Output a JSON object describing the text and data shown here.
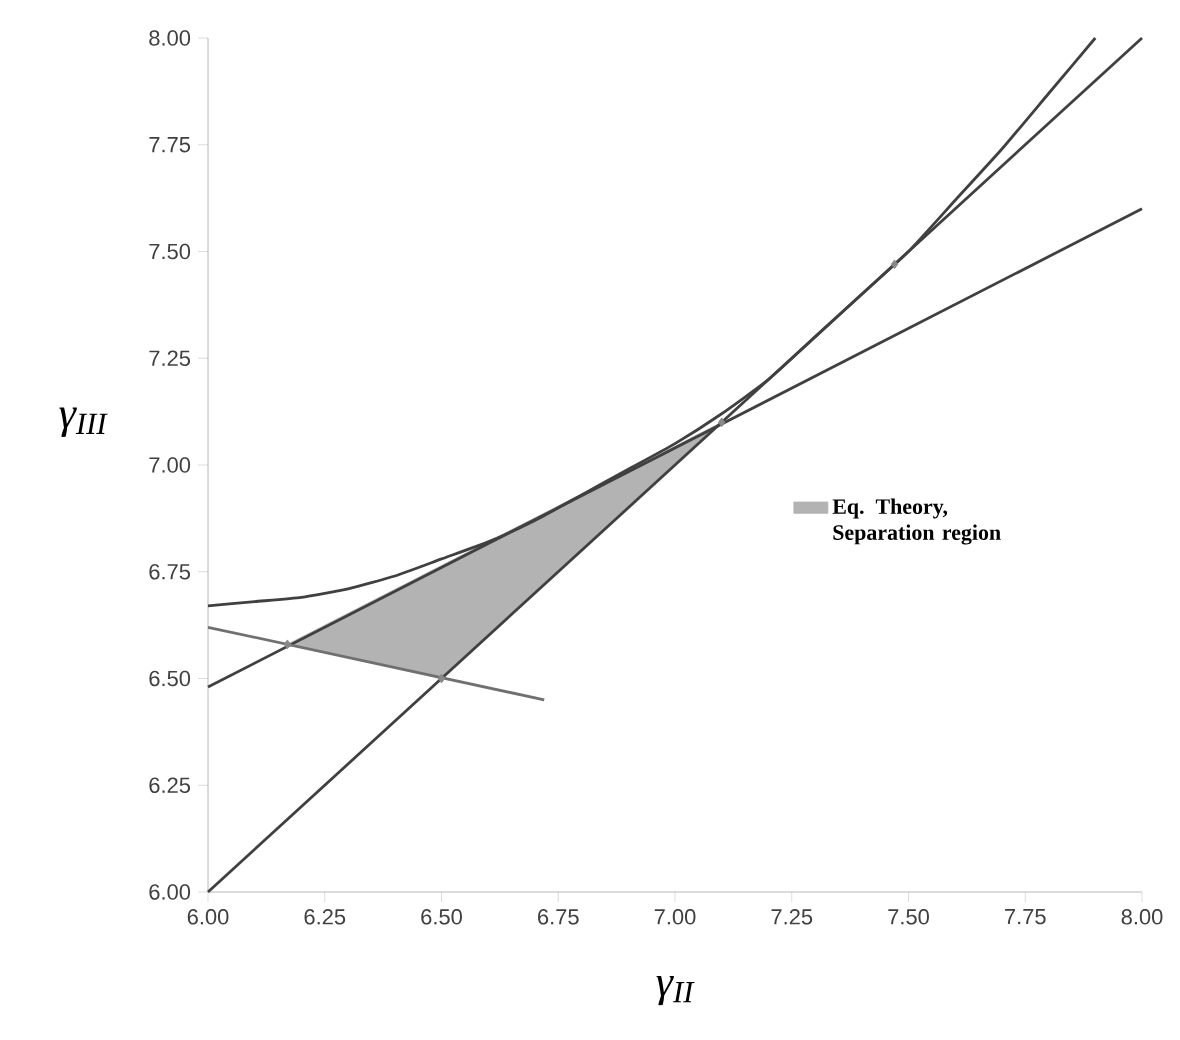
{
  "chart_data": {
    "type": "line",
    "xlabel": "γ$_{II}$",
    "ylabel": "γ$_{III}$",
    "xlim": [
      6,
      8
    ],
    "ylim": [
      6,
      8
    ],
    "xticks": [
      {
        "value": 6,
        "label": "6.00"
      },
      {
        "value": 6.25,
        "label": "6.25"
      },
      {
        "value": 6.5,
        "label": "6.50"
      },
      {
        "value": 6.75,
        "label": "6.75"
      },
      {
        "value": 7,
        "label": "7.00"
      },
      {
        "value": 7.25,
        "label": "7.25"
      },
      {
        "value": 7.5,
        "label": "7.50"
      },
      {
        "value": 7.75,
        "label": "7.75"
      },
      {
        "value": 8,
        "label": "8.00"
      }
    ],
    "yticks": [
      {
        "value": 6,
        "label": "6.00"
      },
      {
        "value": 6.25,
        "label": "6.25"
      },
      {
        "value": 6.5,
        "label": "6.50"
      },
      {
        "value": 6.75,
        "label": "6.75"
      },
      {
        "value": 7,
        "label": "7.00"
      },
      {
        "value": 7.25,
        "label": "7.25"
      },
      {
        "value": 7.5,
        "label": "7.50"
      },
      {
        "value": 7.75,
        "label": "7.75"
      },
      {
        "value": 8,
        "label": "8.00"
      }
    ],
    "grid": false,
    "legend": "right",
    "series": [
      {
        "type": "area",
        "name": "Eq. Theory, Separation region",
        "color": "#b3b3b3",
        "x": [
          6.17,
          7.1,
          6.5
        ],
        "values": [
          6.58,
          7.1,
          6.5
        ]
      },
      {
        "color": "#404040",
        "x": [
          6,
          8
        ],
        "values": [
          6,
          8
        ]
      },
      {
        "color": "#404040",
        "x": [
          6,
          8
        ],
        "values": [
          6.48,
          7.6
        ]
      },
      {
        "color": "#404040",
        "x": [
          6.0,
          6.1,
          6.2,
          6.3,
          6.4,
          6.5,
          6.6,
          6.7,
          6.8,
          6.9,
          7.0,
          7.1,
          7.2,
          7.3,
          7.4,
          7.5,
          7.6,
          7.7,
          7.8,
          7.9
        ],
        "values": [
          6.67,
          6.68,
          6.69,
          6.71,
          6.74,
          6.78,
          6.82,
          6.87,
          6.93,
          6.99,
          7.05,
          7.12,
          7.2,
          7.3,
          7.4,
          7.5,
          7.62,
          7.74,
          7.87,
          8.0
        ]
      },
      {
        "color": "#707070",
        "x": [
          6,
          6.72
        ],
        "values": [
          6.62,
          6.45
        ]
      },
      {
        "type": "scatter",
        "marker": "diamond",
        "color": "#888888",
        "x": [
          6.17,
          6.5,
          7.1,
          7.47
        ],
        "values": [
          6.58,
          6.5,
          7.1,
          7.47
        ]
      }
    ]
  }
}
